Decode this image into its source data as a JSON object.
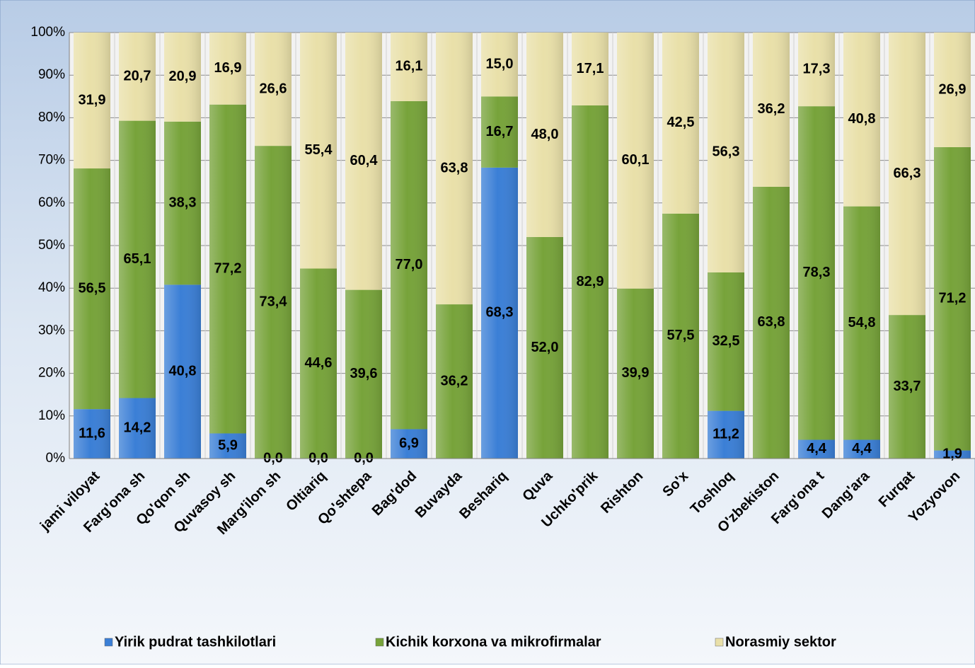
{
  "chart_data": {
    "type": "stacked_bar",
    "categories": [
      "jami viloyat",
      "Farg'ona sh",
      "Qo'qon sh",
      "Quvasoy sh",
      "Marg'ilon sh",
      "Oltiariq",
      "Qo'shtepa",
      "Bag'dod",
      "Buvayda",
      "Beshariq",
      "Quva",
      "Uchko'prik",
      "Rishton",
      "So'x",
      "Toshloq",
      "O'zbekiston",
      "Farg'ona t",
      "Dang'ara",
      "Furqat",
      "Yozyovon"
    ],
    "series": [
      {
        "name": "Yirik pudrat tashkilotlari",
        "color": "#3b7fd6",
        "values": [
          11.6,
          14.2,
          40.8,
          5.9,
          0.0,
          0.0,
          0.0,
          6.9,
          0,
          68.3,
          0,
          0,
          0,
          0,
          11.2,
          0,
          4.4,
          4.4,
          0,
          1.9
        ],
        "value_labels": [
          "11,6",
          "14,2",
          "40,8",
          "5,9",
          "0,0",
          "0,0",
          "0,0",
          "6,9",
          null,
          "68,3",
          null,
          null,
          null,
          null,
          "11,2",
          null,
          "4,4",
          "4,4",
          null,
          "1,9"
        ]
      },
      {
        "name": "Kichik korxona va mikrofirmalar",
        "color": "#77a33a",
        "values": [
          56.5,
          65.1,
          38.3,
          77.2,
          73.4,
          44.6,
          39.6,
          77.0,
          36.2,
          16.7,
          52.0,
          82.9,
          39.9,
          57.5,
          32.5,
          63.8,
          78.3,
          54.8,
          33.7,
          71.2
        ],
        "value_labels": [
          "56,5",
          "65,1",
          "38,3",
          "77,2",
          "73,4",
          "44,6",
          "39,6",
          "77,0",
          "36,2",
          "16,7",
          "52,0",
          "82,9",
          "39,9",
          "57,5",
          "32,5",
          "63,8",
          "78,3",
          "54,8",
          "33,7",
          "71,2"
        ]
      },
      {
        "name": "Norasmiy sektor",
        "color": "#e9e0a9",
        "values": [
          31.9,
          20.7,
          20.9,
          16.9,
          26.6,
          55.4,
          60.4,
          16.1,
          63.8,
          15.0,
          48.0,
          17.1,
          60.1,
          42.5,
          56.3,
          36.2,
          17.3,
          40.8,
          66.3,
          26.9
        ],
        "value_labels": [
          "31,9",
          "20,7",
          "20,9",
          "16,9",
          "26,6",
          "55,4",
          "60,4",
          "16,1",
          "63,8",
          "15,0",
          "48,0",
          "17,1",
          "60,1",
          "42,5",
          "56,3",
          "36,2",
          "17,3",
          "40,8",
          "66,3",
          "26,9"
        ]
      }
    ],
    "ylim": [
      0,
      100
    ],
    "yticks": [
      {
        "value": 0,
        "label": "0%"
      },
      {
        "value": 10,
        "label": "10%"
      },
      {
        "value": 20,
        "label": "20%"
      },
      {
        "value": 30,
        "label": "30%"
      },
      {
        "value": 40,
        "label": "40%"
      },
      {
        "value": 50,
        "label": "50%"
      },
      {
        "value": 60,
        "label": "60%"
      },
      {
        "value": 70,
        "label": "70%"
      },
      {
        "value": 80,
        "label": "80%"
      },
      {
        "value": 90,
        "label": "90%"
      },
      {
        "value": 100,
        "label": "100%"
      }
    ],
    "grid": true,
    "legend": "bottom"
  }
}
